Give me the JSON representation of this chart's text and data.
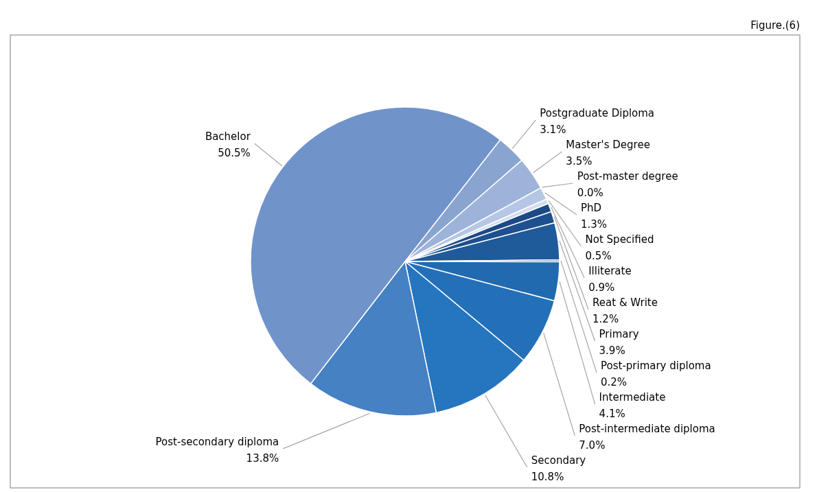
{
  "chart_data": {
    "type": "pie",
    "categories": [
      "Postgraduate Diploma",
      "Master's Degree",
      "Post-master degree",
      "PhD",
      "Not Specified",
      "Illiterate",
      "Reat & Write",
      "Primary",
      "Post-primary diploma",
      "Intermediate",
      "Post-intermediate diploma",
      "Secondary",
      "Post-secondary diploma",
      "Bachelor"
    ],
    "values": [
      3.1,
      3.5,
      0.0,
      1.3,
      0.5,
      0.9,
      1.2,
      3.9,
      0.2,
      4.1,
      7.0,
      10.8,
      13.8,
      50.5
    ],
    "colors": [
      "#8aa4d0",
      "#9db3da",
      "#c6d4eb",
      "#b5c7e5",
      "#d3ddef",
      "#1c4a85",
      "#1e508f",
      "#1f5a9a",
      "#205fa2",
      "#226aaf",
      "#2370b8",
      "#2575bf",
      "#4581c3",
      "#7093ca"
    ],
    "value_labels": [
      "3.1%",
      "3.5%",
      "0.0%",
      "1.3%",
      "0.5%",
      "0.9%",
      "1.2%",
      "3.9%",
      "0.2%",
      "4.1%",
      "7.0%",
      "10.8%",
      "13.8%",
      "50.5%"
    ],
    "annotations": [
      "Figure.(6)"
    ]
  }
}
